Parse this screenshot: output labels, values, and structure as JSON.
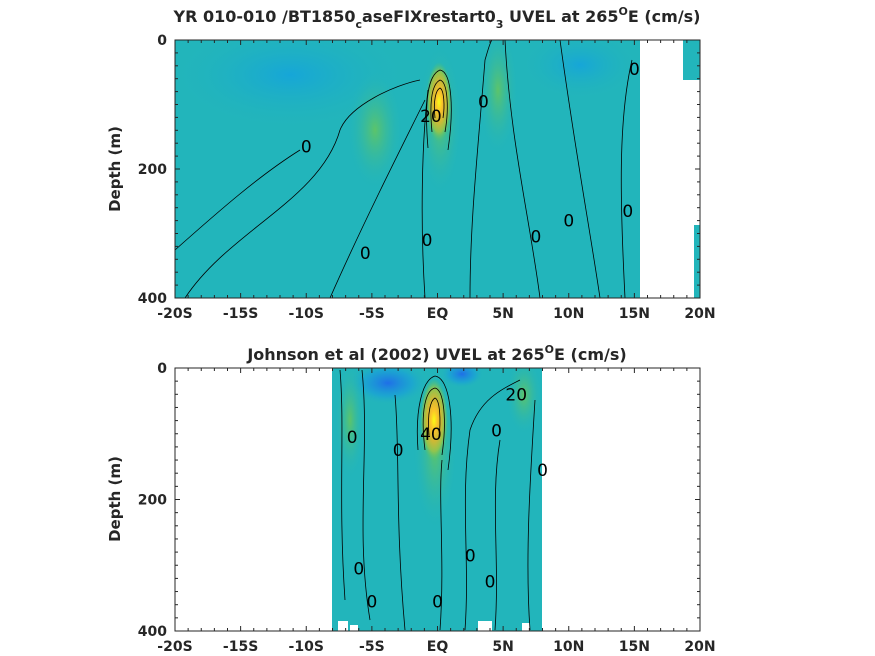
{
  "chart_data": [
    {
      "type": "heatmap",
      "title_parts": [
        "YR 010-010 /BT1850",
        "c",
        "aseFIXrestart0",
        "3",
        " UVEL at 265",
        "O",
        "E (cm/s)"
      ],
      "ylabel": "Depth (m)",
      "xlim": [
        -20,
        20
      ],
      "ylim": [
        0,
        400
      ],
      "y_reversed": true,
      "xticks": [
        -20,
        -15,
        -10,
        -5,
        0,
        5,
        10,
        15,
        20
      ],
      "xtick_labels": [
        "-20S",
        "-15S",
        "-10S",
        "-5S",
        "EQ",
        "5N",
        "10N",
        "15N",
        "20N"
      ],
      "yticks": [
        0,
        200,
        400
      ],
      "ytick_labels": [
        "0",
        "200",
        "400"
      ],
      "data_extent_lon": [
        -20,
        15.5
      ],
      "colormap": [
        "#3e26a8",
        "#1f78ff",
        "#19aad3",
        "#23bab1",
        "#3fc27e",
        "#8fc44f",
        "#d0b834",
        "#fbc22a",
        "#f9fb15"
      ],
      "background_color": "#22b5bb",
      "core": {
        "lon": 0.3,
        "depth": 100,
        "max_speed_estimate": 100
      },
      "contour_labels": [
        {
          "text": "0",
          "lon": -10,
          "depth": 165
        },
        {
          "text": "0",
          "lon": -5.5,
          "depth": 330
        },
        {
          "text": "0",
          "lon": -0.8,
          "depth": 310
        },
        {
          "text": "0",
          "lon": 3.5,
          "depth": 95
        },
        {
          "text": "0",
          "lon": 7.5,
          "depth": 305
        },
        {
          "text": "0",
          "lon": 10,
          "depth": 280
        },
        {
          "text": "0",
          "lon": 14.5,
          "depth": 265
        },
        {
          "text": "0",
          "lon": 15,
          "depth": 45
        },
        {
          "text": "20",
          "lon": -0.5,
          "depth": 118
        }
      ]
    },
    {
      "type": "heatmap",
      "title_parts": [
        "Johnson et al (2002) UVEL at 265",
        "O",
        "E (cm/s)"
      ],
      "ylabel": "Depth (m)",
      "xlim": [
        -20,
        20
      ],
      "ylim": [
        0,
        400
      ],
      "y_reversed": true,
      "xticks": [
        -20,
        -15,
        -10,
        -5,
        0,
        5,
        10,
        15,
        20
      ],
      "xtick_labels": [
        "-20S",
        "-15S",
        "-10S",
        "-5S",
        "EQ",
        "5N",
        "10N",
        "15N",
        "20N"
      ],
      "yticks": [
        0,
        200,
        400
      ],
      "ytick_labels": [
        "0",
        "200",
        "400"
      ],
      "data_extent_lon": [
        -8,
        8
      ],
      "colormap": [
        "#3e26a8",
        "#1f78ff",
        "#19aad3",
        "#23bab1",
        "#3fc27e",
        "#8fc44f",
        "#d0b834",
        "#fbc22a",
        "#f9fb15"
      ],
      "background_color": "#22b5bb",
      "core": {
        "lon": 0,
        "depth": 70,
        "max_speed_estimate": 100
      },
      "contour_labels": [
        {
          "text": "0",
          "lon": -6.5,
          "depth": 105
        },
        {
          "text": "0",
          "lon": -3,
          "depth": 125
        },
        {
          "text": "0",
          "lon": -6,
          "depth": 305
        },
        {
          "text": "0",
          "lon": -5,
          "depth": 355
        },
        {
          "text": "0",
          "lon": 0,
          "depth": 355
        },
        {
          "text": "0",
          "lon": 2.5,
          "depth": 285
        },
        {
          "text": "0",
          "lon": 4,
          "depth": 325
        },
        {
          "text": "0",
          "lon": 4.5,
          "depth": 95
        },
        {
          "text": "0",
          "lon": 8,
          "depth": 155
        },
        {
          "text": "20",
          "lon": 6,
          "depth": 40
        },
        {
          "text": "40",
          "lon": -0.5,
          "depth": 100
        }
      ]
    }
  ]
}
